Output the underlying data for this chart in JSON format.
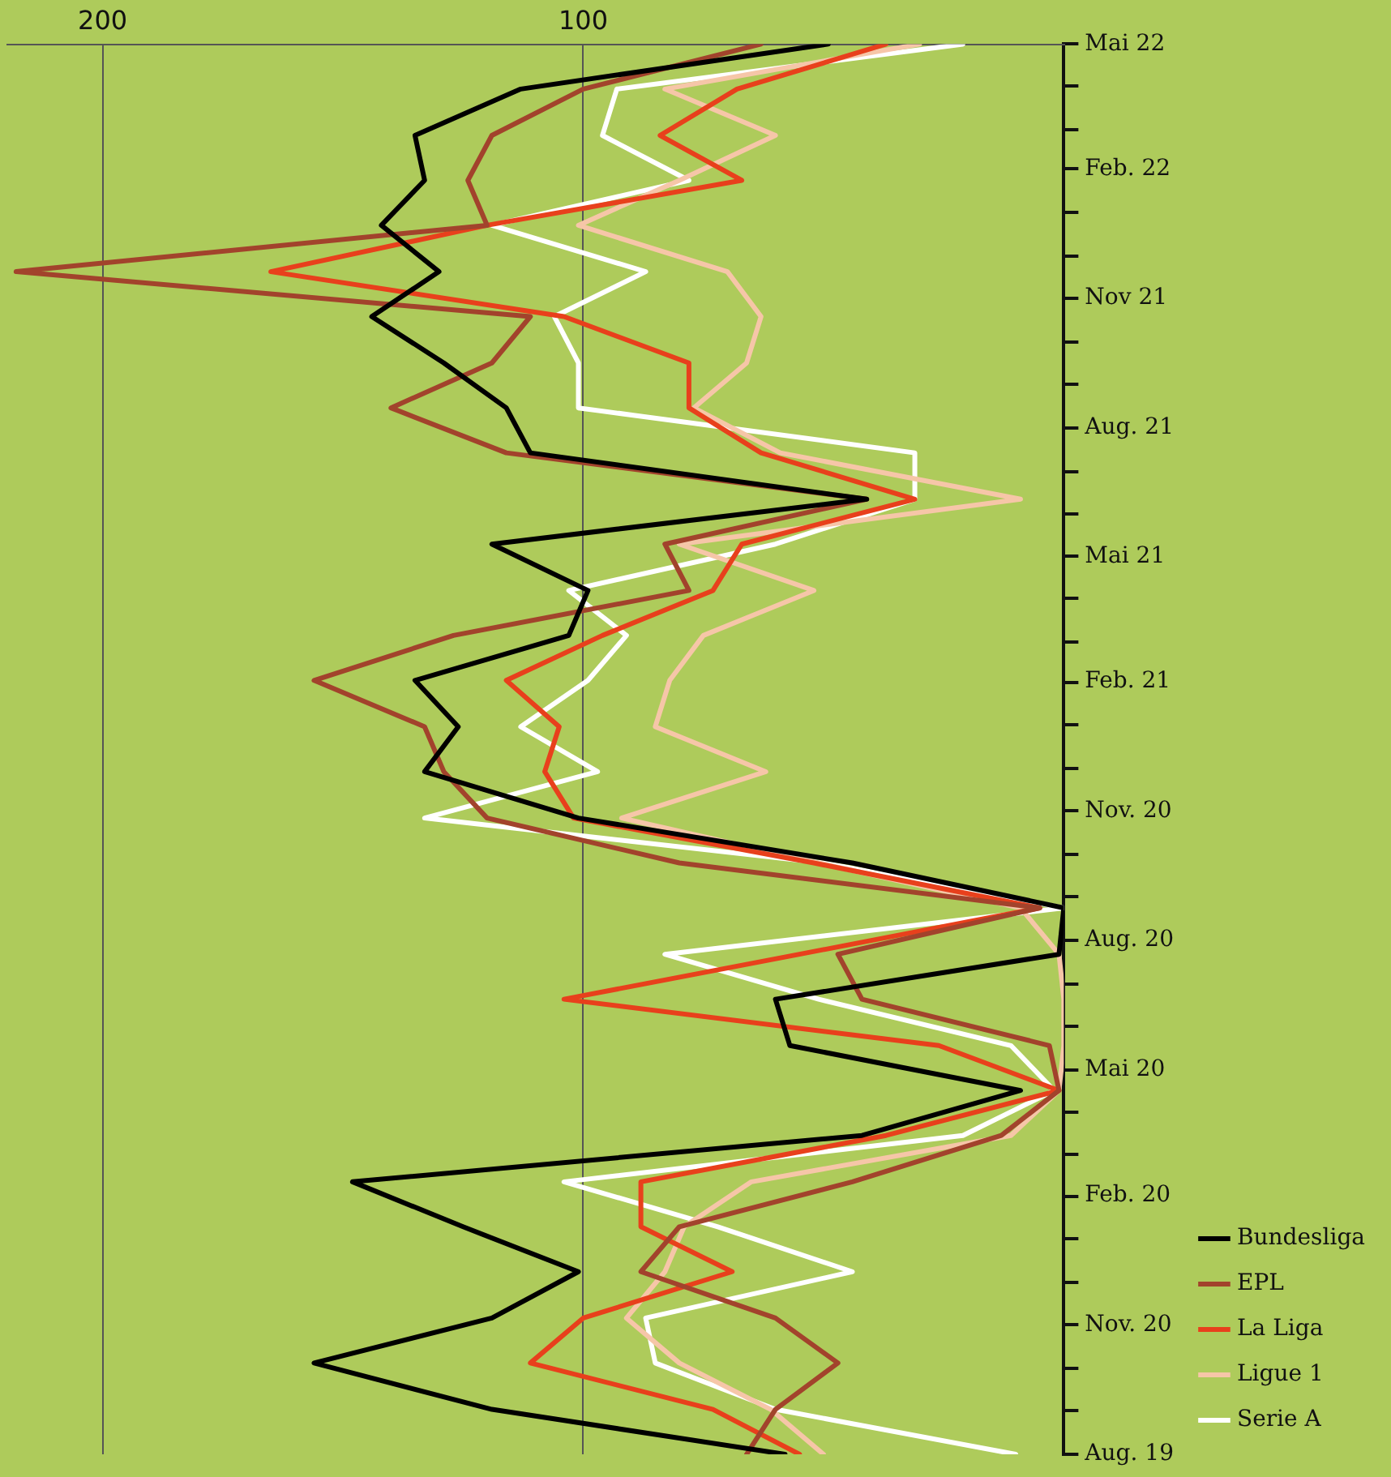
{
  "chart_data": {
    "type": "line",
    "x": [
      "2019-08-01",
      "2019-09-02",
      "2019-10-05",
      "2019-11-06",
      "2019-12-09",
      "2020-01-10",
      "2020-02-11",
      "2020-03-15",
      "2020-04-16",
      "2020-05-18",
      "2020-06-20",
      "2020-07-22",
      "2020-08-24",
      "2020-09-25",
      "2020-10-27",
      "2020-11-29",
      "2020-12-31",
      "2021-02-02",
      "2021-03-06",
      "2021-04-07",
      "2021-05-10",
      "2021-06-11",
      "2021-07-14",
      "2021-08-15",
      "2021-09-16",
      "2021-10-19",
      "2021-11-20",
      "2021-12-23",
      "2022-01-24",
      "2022-02-25",
      "2022-03-30",
      "2022-05-01"
    ],
    "series": [
      {
        "name": "Bundesliga",
        "color": "#000000",
        "values": [
          58,
          119,
          156,
          119,
          101,
          125,
          148,
          42,
          9,
          57,
          60,
          1,
          0,
          44,
          101,
          133,
          126,
          135,
          103,
          99,
          119,
          41,
          111,
          116,
          129,
          144,
          130,
          142,
          133,
          135,
          113,
          49
        ]
      },
      {
        "name": "EPL",
        "color": "#a2432c",
        "values": [
          66,
          60,
          47,
          60,
          88,
          80,
          44,
          13,
          1,
          3,
          42,
          47,
          5,
          80,
          120,
          129,
          133,
          156,
          127,
          78,
          83,
          41,
          116,
          140,
          119,
          111,
          218,
          120,
          124,
          119,
          100,
          63
        ]
      },
      {
        "name": "La Liga",
        "color": "#e8401c",
        "values": [
          55,
          73,
          111,
          100,
          69,
          88,
          88,
          37,
          1,
          26,
          104,
          55,
          5,
          52,
          102,
          108,
          105,
          116,
          96,
          73,
          67,
          31,
          63,
          78,
          78,
          104,
          165,
          120,
          67,
          84,
          68,
          37
        ]
      },
      {
        "name": "Ligue 1",
        "color": "#f6c6a8",
        "values": [
          50,
          61,
          80,
          91,
          83,
          79,
          65,
          11,
          1,
          0,
          0,
          1,
          9,
          51,
          92,
          62,
          85,
          82,
          75,
          52,
          80,
          9,
          59,
          77,
          66,
          63,
          70,
          101,
          80,
          60,
          83,
          30
        ]
      },
      {
        "name": "Serie A",
        "color": "#ffffff",
        "values": [
          10,
          60,
          85,
          87,
          44,
          72,
          104,
          21,
          2,
          11,
          51,
          83,
          0,
          50,
          133,
          97,
          113,
          99,
          91,
          103,
          60,
          31,
          31,
          101,
          101,
          106,
          87,
          119,
          78,
          96,
          93,
          21
        ]
      }
    ],
    "orientation": "horizontal",
    "ylim": [
      "2019-08",
      "2022-05"
    ],
    "yticks": [
      {
        "value": "2019-08",
        "label": "Aug. 19"
      },
      {
        "value": "2019-09",
        "label": null
      },
      {
        "value": "2019-10",
        "label": null
      },
      {
        "value": "2019-11",
        "label": "Nov. 20"
      },
      {
        "value": "2019-12",
        "label": null
      },
      {
        "value": "2020-01",
        "label": null
      },
      {
        "value": "2020-02",
        "label": "Feb. 20"
      },
      {
        "value": "2020-03",
        "label": null
      },
      {
        "value": "2020-04",
        "label": null
      },
      {
        "value": "2020-05",
        "label": "Mai 20"
      },
      {
        "value": "2020-06",
        "label": null
      },
      {
        "value": "2020-07",
        "label": null
      },
      {
        "value": "2020-08",
        "label": "Aug. 20"
      },
      {
        "value": "2020-09",
        "label": null
      },
      {
        "value": "2020-10",
        "label": null
      },
      {
        "value": "2020-11",
        "label": "Nov. 20"
      },
      {
        "value": "2020-12",
        "label": null
      },
      {
        "value": "2021-01",
        "label": null
      },
      {
        "value": "2021-02",
        "label": "Feb. 21"
      },
      {
        "value": "2021-03",
        "label": null
      },
      {
        "value": "2021-04",
        "label": null
      },
      {
        "value": "2021-05",
        "label": "Mai 21"
      },
      {
        "value": "2021-06",
        "label": null
      },
      {
        "value": "2021-07",
        "label": null
      },
      {
        "value": "2021-08",
        "label": "Aug. 21"
      },
      {
        "value": "2021-09",
        "label": null
      },
      {
        "value": "2021-10",
        "label": null
      },
      {
        "value": "2021-11",
        "label": "Nov 21"
      },
      {
        "value": "2021-12",
        "label": null
      },
      {
        "value": "2022-01",
        "label": null
      },
      {
        "value": "2022-02",
        "label": "Feb. 22"
      },
      {
        "value": "2022-03",
        "label": null
      },
      {
        "value": "2022-04",
        "label": null
      },
      {
        "value": "2022-05",
        "label": "Mai 22"
      }
    ],
    "xlim": [
      220,
      0
    ],
    "xticks": [
      100,
      200
    ],
    "grid": "x",
    "legend": "right",
    "marker": "none",
    "line_style": "solid"
  }
}
